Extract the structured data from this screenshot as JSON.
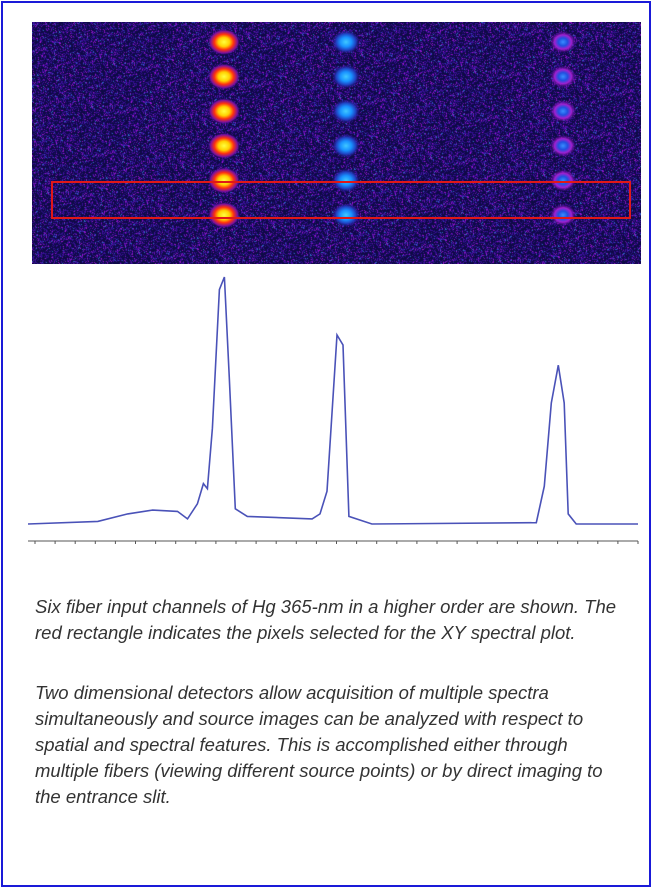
{
  "captions": {
    "first": "Six fiber input channels of Hg 365-nm in a higher order are shown. The red rectangle indicates the pixels selected for the XY spectral plot.",
    "second": "Two dimensional detectors allow acquisition of multiple spectra simultaneously and source images can be analyzed with respect to spatial and spectral features. This is accomplished either through multiple fibers (viewing different source points) or by direct imaging to the entrance slit."
  },
  "colors": {
    "frame_border": "#1a1ad8",
    "roi_border": "#e01818",
    "trace": "#4a52b8",
    "detector_background": "#120c55"
  },
  "detector_image": {
    "channels": 6,
    "lines_per_channel": 3,
    "selected_channel": 5
  },
  "chart_data": {
    "type": "line",
    "title": "",
    "xlabel": "",
    "ylabel": "",
    "x_ticks_count": 31,
    "series": [
      {
        "values": [
          [
            0,
            0.02
          ],
          [
            70,
            0.03
          ],
          [
            100,
            0.06
          ],
          [
            125,
            0.075
          ],
          [
            150,
            0.07
          ],
          [
            160,
            0.04
          ],
          [
            170,
            0.1
          ],
          [
            176,
            0.18
          ],
          [
            180,
            0.16
          ],
          [
            185,
            0.4
          ],
          [
            192,
            0.95
          ],
          [
            197,
            1.0
          ],
          [
            202,
            0.6
          ],
          [
            208,
            0.08
          ],
          [
            220,
            0.05
          ],
          [
            285,
            0.04
          ],
          [
            293,
            0.06
          ],
          [
            300,
            0.15
          ],
          [
            310,
            0.77
          ],
          [
            316,
            0.73
          ],
          [
            322,
            0.05
          ],
          [
            345,
            0.02
          ],
          [
            510,
            0.025
          ],
          [
            518,
            0.17
          ],
          [
            525,
            0.5
          ],
          [
            532,
            0.65
          ],
          [
            538,
            0.5
          ],
          [
            542,
            0.06
          ],
          [
            550,
            0.02
          ],
          [
            612,
            0.02
          ]
        ]
      }
    ]
  }
}
